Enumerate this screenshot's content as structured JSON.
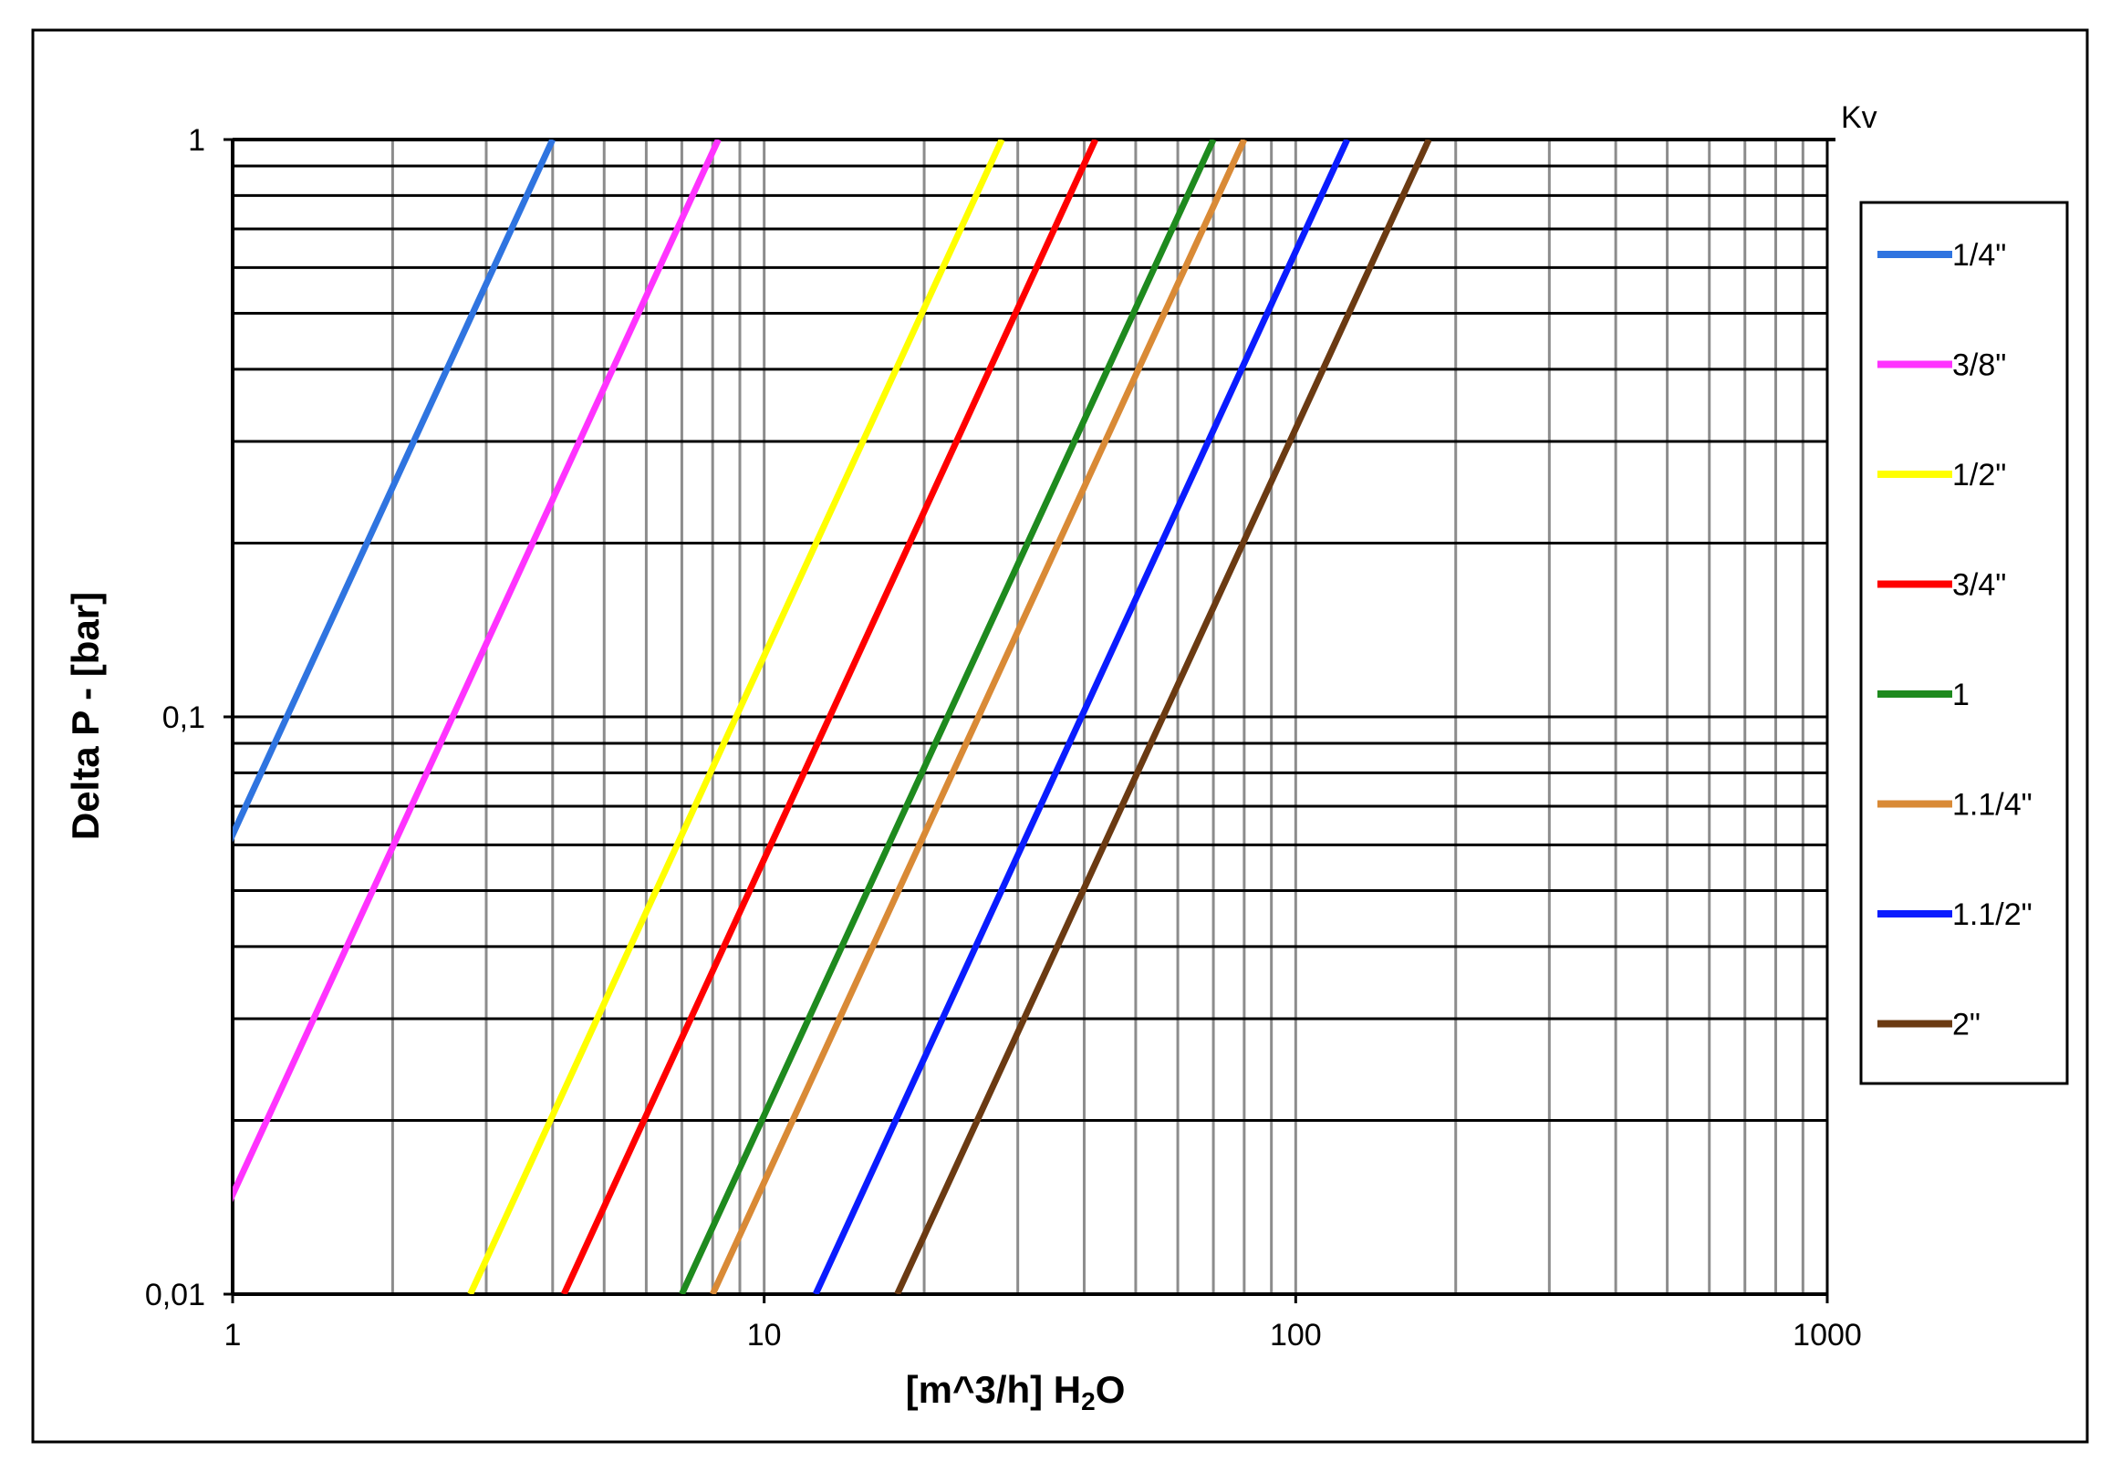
{
  "chart_data": {
    "type": "line",
    "xlabel_main": "[m^3/h] H",
    "xlabel_sub": "2",
    "xlabel_end": "O",
    "ylabel": "Delta P - [bar]",
    "corner_label": "Kv",
    "x_scale": "log",
    "y_scale": "log",
    "xlim": [
      1,
      1000
    ],
    "ylim": [
      0.01,
      1
    ],
    "x_ticks": [
      {
        "value": 1,
        "label": "1"
      },
      {
        "value": 10,
        "label": "10"
      },
      {
        "value": 100,
        "label": "100"
      },
      {
        "value": 1000,
        "label": "1000"
      }
    ],
    "y_ticks": [
      {
        "value": 1,
        "label": "1"
      },
      {
        "value": 0.1,
        "label": "0,1"
      },
      {
        "value": 0.01,
        "label": "0,01"
      }
    ],
    "grid": true,
    "legend_position": "right",
    "series": [
      {
        "name": "1/4\"",
        "kv": 4,
        "color": "#2f74e0"
      },
      {
        "name": "3/8\"",
        "kv": 8.2,
        "color": "#ff33ff"
      },
      {
        "name": "1/2\"",
        "kv": 28,
        "color": "#ffff00"
      },
      {
        "name": "3/4\"",
        "kv": 42,
        "color": "#ff0000"
      },
      {
        "name": "1",
        "kv": 70,
        "color": "#1e8a1e"
      },
      {
        "name": "1.1/4\"",
        "kv": 80,
        "color": "#d98a36"
      },
      {
        "name": "1.1/2\"",
        "kv": 125,
        "color": "#0a1cff"
      },
      {
        "name": "2\"",
        "kv": 178,
        "color": "#6b3a12"
      }
    ]
  }
}
